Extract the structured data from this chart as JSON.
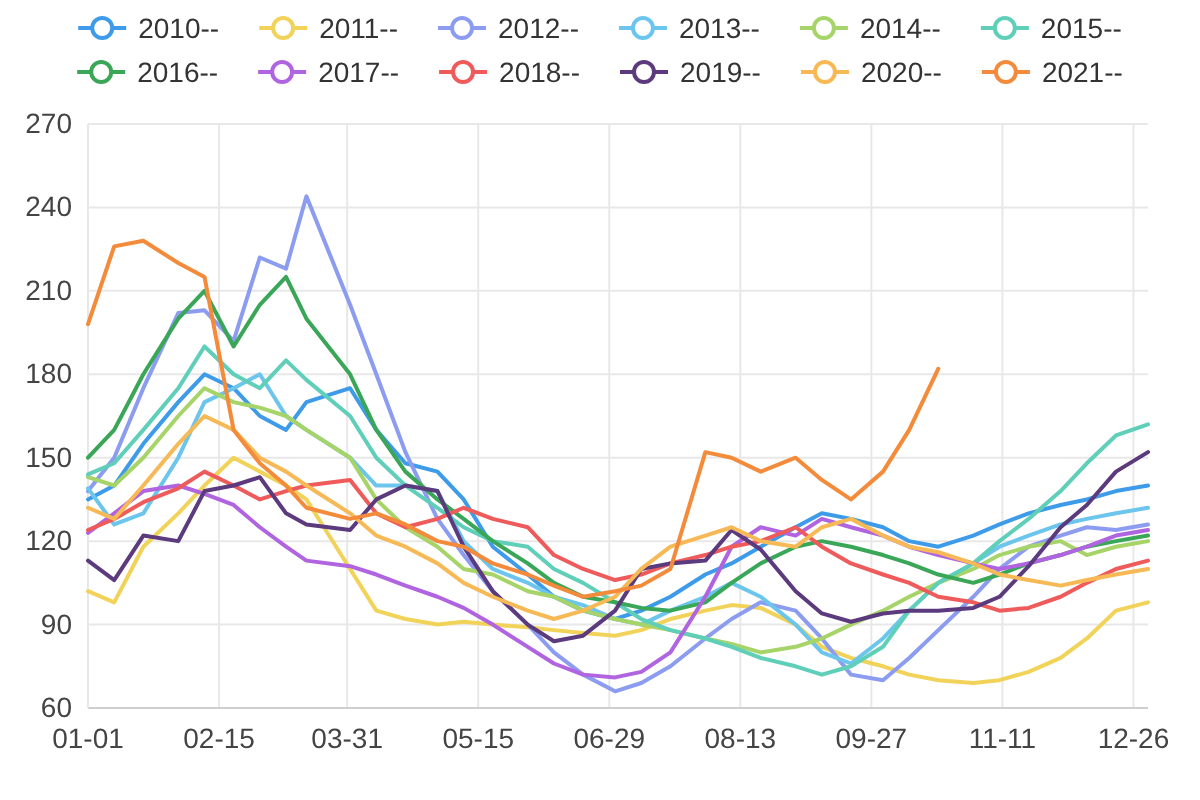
{
  "chart_data": {
    "type": "line",
    "x": [
      "--01-01",
      "--01-10",
      "--01-20",
      "--02-01",
      "--02-10",
      "--02-20",
      "--03-01",
      "--03-10",
      "--03-17",
      "--04-01",
      "--04-10",
      "--04-20",
      "--05-01",
      "--05-10",
      "--05-20",
      "--06-01",
      "--06-10",
      "--06-20",
      "--07-01",
      "--07-10",
      "--07-20",
      "--08-01",
      "--08-10",
      "--08-20",
      "--09-01",
      "--09-10",
      "--09-20",
      "--10-01",
      "--10-10",
      "--10-20",
      "--11-01",
      "--11-10",
      "--11-20",
      "--12-01",
      "--12-10",
      "--12-20",
      "--12-31"
    ],
    "xlim": [
      "--01-01",
      "--12-31"
    ],
    "xticks": [
      {
        "value": "--01-01",
        "label": "01-01"
      },
      {
        "value": "--02-15",
        "label": "02-15"
      },
      {
        "value": "--03-31",
        "label": "03-31"
      },
      {
        "value": "--05-15",
        "label": "05-15"
      },
      {
        "value": "--06-29",
        "label": "06-29"
      },
      {
        "value": "--08-13",
        "label": "08-13"
      },
      {
        "value": "--09-27",
        "label": "09-27"
      },
      {
        "value": "--11-11",
        "label": "11-11"
      },
      {
        "value": "--12-26",
        "label": "12-26"
      }
    ],
    "ylim": [
      60,
      270
    ],
    "yticks": [
      60,
      90,
      120,
      150,
      180,
      210,
      240,
      270
    ],
    "grid": true,
    "legend": "top",
    "series": [
      {
        "name": "2010--",
        "color": "#3d9be9",
        "values": [
          135,
          140,
          155,
          170,
          180,
          175,
          165,
          160,
          170,
          175,
          160,
          148,
          145,
          135,
          118,
          108,
          100,
          95,
          92,
          95,
          100,
          108,
          112,
          118,
          125,
          130,
          128,
          125,
          120,
          118,
          122,
          126,
          130,
          133,
          135,
          138,
          140
        ]
      },
      {
        "name": "2011--",
        "color": "#f2d35a",
        "values": [
          102,
          98,
          118,
          130,
          140,
          150,
          145,
          140,
          135,
          110,
          95,
          92,
          90,
          91,
          90,
          89,
          88,
          87,
          86,
          88,
          92,
          95,
          97,
          96,
          90,
          82,
          78,
          75,
          72,
          70,
          69,
          70,
          73,
          78,
          85,
          95,
          98
        ]
      },
      {
        "name": "2012--",
        "color": "#8c9cf0",
        "values": [
          138,
          150,
          175,
          202,
          203,
          192,
          222,
          218,
          244,
          205,
          180,
          152,
          128,
          115,
          102,
          90,
          80,
          72,
          66,
          69,
          75,
          85,
          92,
          98,
          95,
          85,
          72,
          70,
          78,
          88,
          100,
          110,
          118,
          122,
          125,
          124,
          126
        ]
      },
      {
        "name": "2013--",
        "color": "#6cc5ec",
        "values": [
          139,
          126,
          130,
          150,
          170,
          175,
          180,
          165,
          160,
          150,
          140,
          140,
          138,
          120,
          110,
          105,
          100,
          97,
          92,
          90,
          95,
          100,
          105,
          100,
          90,
          80,
          76,
          85,
          95,
          105,
          112,
          118,
          122,
          126,
          128,
          130,
          132
        ]
      },
      {
        "name": "2014--",
        "color": "#a6d468",
        "values": [
          143,
          140,
          150,
          165,
          175,
          170,
          168,
          165,
          160,
          150,
          135,
          125,
          118,
          110,
          108,
          102,
          100,
          95,
          92,
          90,
          88,
          85,
          83,
          80,
          82,
          85,
          90,
          95,
          100,
          105,
          110,
          115,
          118,
          120,
          115,
          118,
          120
        ]
      },
      {
        "name": "2015--",
        "color": "#5fcfb9",
        "values": [
          144,
          148,
          160,
          175,
          190,
          180,
          175,
          185,
          178,
          165,
          150,
          140,
          132,
          125,
          120,
          118,
          110,
          105,
          98,
          92,
          88,
          85,
          82,
          78,
          75,
          72,
          75,
          82,
          95,
          105,
          112,
          120,
          128,
          138,
          148,
          158,
          162
        ]
      },
      {
        "name": "2016--",
        "color": "#3aa657",
        "values": [
          150,
          160,
          180,
          200,
          210,
          190,
          205,
          215,
          200,
          180,
          160,
          145,
          135,
          128,
          120,
          112,
          105,
          100,
          98,
          96,
          95,
          98,
          105,
          112,
          118,
          120,
          118,
          115,
          112,
          108,
          105,
          108,
          112,
          115,
          118,
          120,
          122
        ]
      },
      {
        "name": "2017--",
        "color": "#b064e0",
        "values": [
          123,
          130,
          138,
          140,
          137,
          133,
          125,
          118,
          113,
          111,
          108,
          104,
          100,
          96,
          90,
          82,
          76,
          72,
          71,
          73,
          80,
          100,
          118,
          125,
          122,
          128,
          125,
          122,
          118,
          115,
          112,
          110,
          112,
          115,
          118,
          122,
          124
        ]
      },
      {
        "name": "2018--",
        "color": "#ef5a5a",
        "values": [
          124,
          128,
          134,
          139,
          145,
          140,
          135,
          138,
          140,
          142,
          130,
          125,
          128,
          132,
          128,
          125,
          115,
          110,
          106,
          108,
          112,
          115,
          118,
          120,
          125,
          118,
          112,
          108,
          105,
          100,
          98,
          95,
          96,
          100,
          105,
          110,
          113
        ]
      },
      {
        "name": "2019--",
        "color": "#5b3a7e",
        "values": [
          113,
          106,
          122,
          120,
          138,
          140,
          143,
          130,
          126,
          124,
          135,
          140,
          138,
          118,
          102,
          90,
          84,
          86,
          95,
          110,
          112,
          113,
          124,
          117,
          102,
          94,
          91,
          94,
          95,
          95,
          96,
          100,
          111,
          125,
          133,
          145,
          152
        ]
      },
      {
        "name": "2020--",
        "color": "#f7b955",
        "values": [
          132,
          128,
          140,
          155,
          165,
          160,
          150,
          145,
          140,
          130,
          122,
          118,
          112,
          105,
          100,
          95,
          92,
          95,
          100,
          110,
          118,
          122,
          125,
          120,
          118,
          125,
          128,
          122,
          118,
          116,
          112,
          108,
          106,
          104,
          106,
          108,
          110
        ]
      },
      {
        "name": "2021--",
        "color": "#f38b3b",
        "values": [
          198,
          226,
          228,
          220,
          215,
          160,
          148,
          140,
          132,
          128,
          130,
          126,
          120,
          118,
          112,
          108,
          104,
          100,
          102,
          104,
          110,
          152,
          150,
          145,
          150,
          142,
          135,
          145,
          160,
          182,
          null,
          null,
          null,
          null,
          null,
          null,
          null
        ]
      }
    ]
  }
}
